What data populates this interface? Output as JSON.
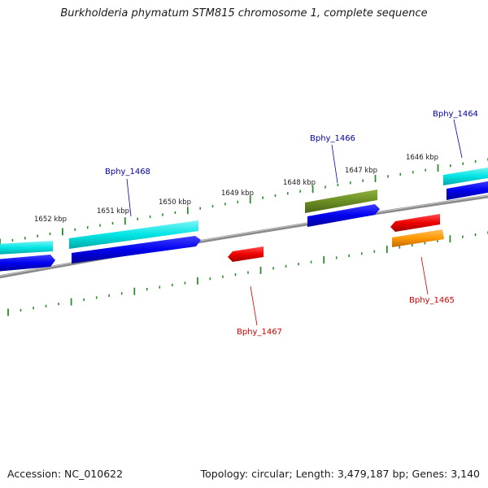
{
  "title": "Burkholderia phymatum STM815 chromosome 1, complete sequence",
  "footer": {
    "accession": "Accession: NC_010622",
    "summary": "Topology: circular; Length: 3,479,187 bp; Genes: 3,140"
  },
  "ticks": [
    "1652 kbp",
    "1651 kbp",
    "1650 kbp",
    "1649 kbp",
    "1648 kbp",
    "1647 kbp",
    "1646 kbp"
  ],
  "gene_labels": {
    "bphy_1468": "Bphy_1468",
    "bphy_1466": "Bphy_1466",
    "bphy_1464": "Bphy_1464",
    "bphy_1467": "Bphy_1467",
    "bphy_1465": "Bphy_1465"
  },
  "colors": {
    "backbone": "#888888",
    "forward_cds": "#0000ee",
    "forward_gene": "#00e5e5",
    "highlight_gene": "#6b8e23",
    "reverse_cds": "#ee0000",
    "reverse_gene": "#ff9900",
    "tick": "#2e8b2e",
    "forward_label": "#0000aa",
    "reverse_label": "#cc0000"
  }
}
